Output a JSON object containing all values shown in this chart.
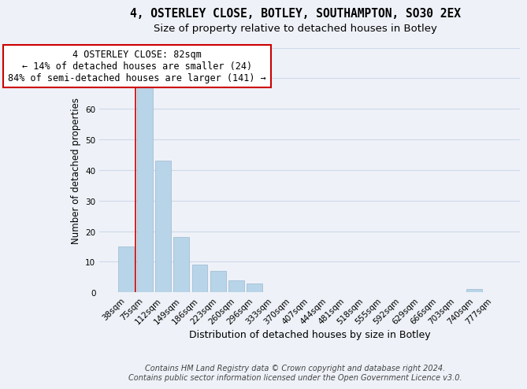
{
  "title": "4, OSTERLEY CLOSE, BOTLEY, SOUTHAMPTON, SO30 2EX",
  "subtitle": "Size of property relative to detached houses in Botley",
  "xlabel": "Distribution of detached houses by size in Botley",
  "ylabel": "Number of detached properties",
  "bar_labels": [
    "38sqm",
    "75sqm",
    "112sqm",
    "149sqm",
    "186sqm",
    "223sqm",
    "260sqm",
    "296sqm",
    "333sqm",
    "370sqm",
    "407sqm",
    "444sqm",
    "481sqm",
    "518sqm",
    "555sqm",
    "592sqm",
    "629sqm",
    "666sqm",
    "703sqm",
    "740sqm",
    "777sqm"
  ],
  "bar_values": [
    15,
    67,
    43,
    18,
    9,
    7,
    4,
    3,
    0,
    0,
    0,
    0,
    0,
    0,
    0,
    0,
    0,
    0,
    0,
    1,
    0
  ],
  "bar_color": "#b8d4e8",
  "vline_color": "#cc0000",
  "vline_x": 0.5,
  "annotation_line1": "4 OSTERLEY CLOSE: 82sqm",
  "annotation_line2": "← 14% of detached houses are smaller (24)",
  "annotation_line3": "84% of semi-detached houses are larger (141) →",
  "annotation_box_edgecolor": "#cc0000",
  "annotation_box_facecolor": "#ffffff",
  "ylim": [
    0,
    80
  ],
  "yticks": [
    0,
    10,
    20,
    30,
    40,
    50,
    60,
    70,
    80
  ],
  "grid_color": "#cdd8e8",
  "background_color": "#eef2f8",
  "footer_line1": "Contains HM Land Registry data © Crown copyright and database right 2024.",
  "footer_line2": "Contains public sector information licensed under the Open Government Licence v3.0.",
  "title_fontsize": 10.5,
  "subtitle_fontsize": 9.5,
  "xlabel_fontsize": 9,
  "ylabel_fontsize": 8.5,
  "tick_fontsize": 7.5,
  "footer_fontsize": 7,
  "annotation_fontsize": 8.5
}
